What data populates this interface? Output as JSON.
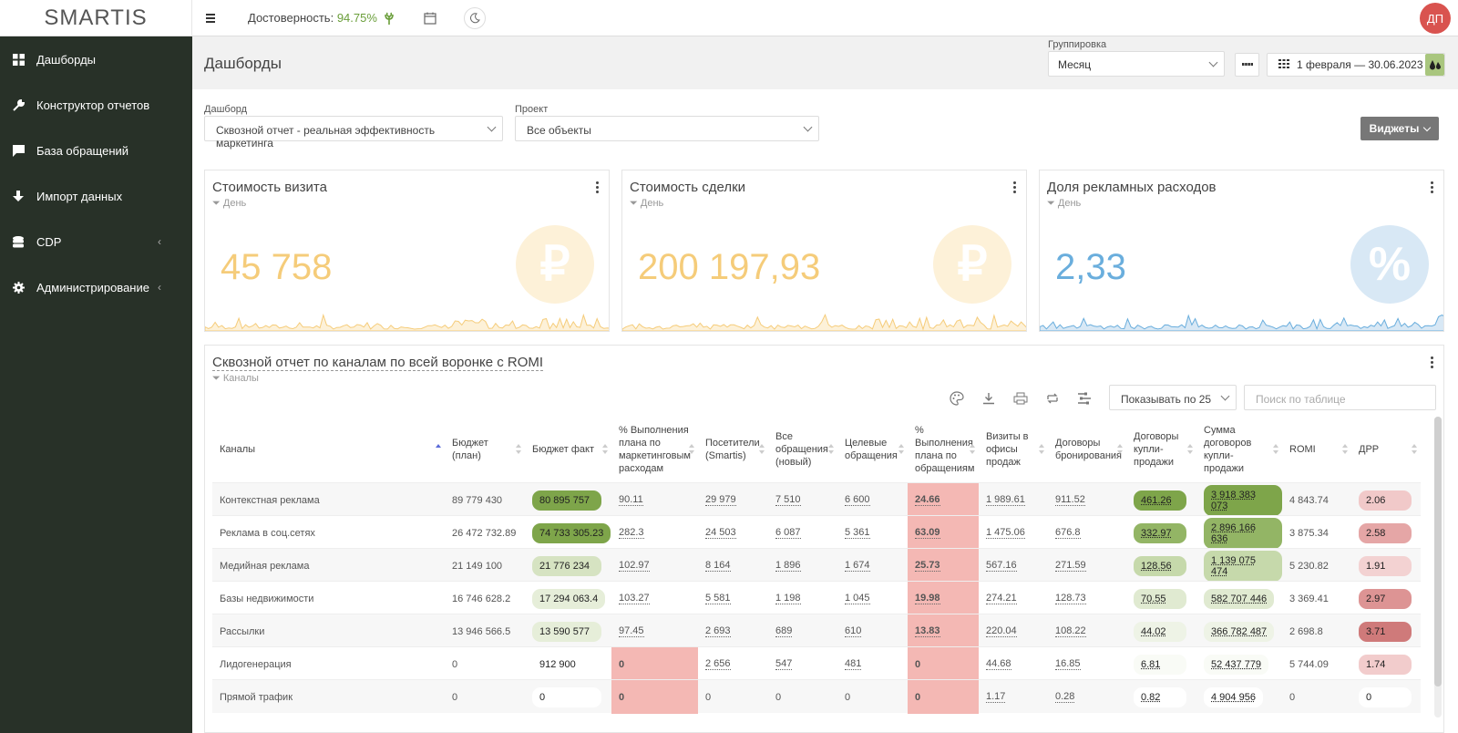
{
  "app": {
    "logo": "SMARTIS"
  },
  "topbar": {
    "reliability_label": "Достоверность:",
    "reliability_value": "94.75%",
    "avatar_initials": "ДП"
  },
  "sidebar": {
    "items": [
      {
        "label": "Дашборды",
        "icon": "grid-icon"
      },
      {
        "label": "Конструктор отчетов",
        "icon": "wrench-icon"
      },
      {
        "label": "База обращений",
        "icon": "chat-icon"
      },
      {
        "label": "Импорт данных",
        "icon": "download-icon"
      },
      {
        "label": "CDP",
        "icon": "database-icon",
        "has_children": true
      },
      {
        "label": "Администрирование",
        "icon": "gear-icon",
        "has_children": true
      }
    ]
  },
  "header": {
    "title": "Дашборды",
    "grouping_label": "Группировка",
    "grouping_value": "Месяц",
    "date_range": "1 февраля — 30.06.2023"
  },
  "filters": {
    "dashboard_label": "Дашборд",
    "dashboard_value": "Сквозной отчет - реальная эффективность маркетинга",
    "project_label": "Проект",
    "project_value": "Все объекты",
    "widgets_button": "Виджеты"
  },
  "cards": [
    {
      "title": "Стоимость визита",
      "sub": "День",
      "value": "45 758",
      "symbol": "₽",
      "color": "#f5cc7a",
      "circle": "#fdf1d8"
    },
    {
      "title": "Стоимость сделки",
      "sub": "День",
      "value": "200 197,93",
      "symbol": "₽",
      "color": "#f5cc7a",
      "circle": "#fdf1d8"
    },
    {
      "title": "Доля рекламных расходов",
      "sub": "День",
      "value": "2,33",
      "symbol": "%",
      "color": "#6aaedd",
      "circle": "#d8e8f5"
    }
  ],
  "table": {
    "title": "Сквозной отчет по каналам по всей воронке с ROMI",
    "sub": "Каналы",
    "per_page": "Показывать по 25",
    "search_placeholder": "Поиск по таблице",
    "columns": [
      "Каналы",
      "Бюджет (план)",
      "Бюджет факт",
      "% Выполнения плана по маркетинговым расходам",
      "Посетители (Smartis)",
      "Все обращения (новый)",
      "Целевые обращения",
      "% Выполнения плана по обращениям",
      "Визиты в офисы продаж",
      "Договоры бронирования",
      "Договоры купли-продажи",
      "Сумма договоров купли-продажи",
      "ROMI",
      "ДРР"
    ],
    "rows": [
      [
        "Контекстная реклама",
        "89 779 430",
        "80 895 757",
        "90.11",
        "29 979",
        "7 510",
        "6 600",
        "24.66",
        "1 989.61",
        "911.52",
        "461.26",
        "3 918 383 073",
        "4 843.74",
        "2.06"
      ],
      [
        "Реклама в соц.сетях",
        "26 472 732.89",
        "74 733 305.23",
        "282.3",
        "24 503",
        "6 087",
        "5 361",
        "63.09",
        "1 475.06",
        "676.8",
        "332.97",
        "2 896 166 636",
        "3 875.34",
        "2.58"
      ],
      [
        "Медийная реклама",
        "21 149 100",
        "21 776 234",
        "102.97",
        "8 164",
        "1 896",
        "1 674",
        "25.73",
        "567.16",
        "271.59",
        "128.56",
        "1 139 075 474",
        "5 230.82",
        "1.91"
      ],
      [
        "Базы недвижимости",
        "16 746 628.2",
        "17 294 063.4",
        "103.27",
        "5 581",
        "1 198",
        "1 045",
        "19.98",
        "274.21",
        "128.73",
        "70.55",
        "582 707 446",
        "3 369.41",
        "2.97"
      ],
      [
        "Рассылки",
        "13 946 566.5",
        "13 590 577",
        "97.45",
        "2 693",
        "689",
        "610",
        "13.83",
        "220.04",
        "108.22",
        "44.02",
        "366 782 487",
        "2 698.8",
        "3.71"
      ],
      [
        "Лидогенерация",
        "0",
        "912 900",
        "0",
        "2 656",
        "547",
        "481",
        "0",
        "44.68",
        "16.85",
        "6.81",
        "52 437 779",
        "5 744.09",
        "1.74"
      ],
      [
        "Прямой трафик",
        "0",
        "0",
        "0",
        "0",
        "0",
        "0",
        "0",
        "1.17",
        "0.28",
        "0.82",
        "4 904 956",
        "0",
        "0"
      ]
    ],
    "budget_fact_colors": [
      "#7ea54a",
      "#7ea54a",
      "#d6e3c2",
      "#e6eed9",
      "#e6eed9",
      "#ffffff",
      "#ffffff"
    ],
    "contracts_colors": [
      "#7ea54a",
      "#93b565",
      "#c6d9ab",
      "#e0ead1",
      "#eef3e6",
      "#f9fbf6",
      "#ffffff"
    ],
    "sum_colors": [
      "#7ea54a",
      "#93b565",
      "#c6d9ab",
      "#e0ead1",
      "#eef3e6",
      "#f9fbf6",
      "#ffffff"
    ],
    "drr_colors": [
      "#f1c9c9",
      "#e5a6a6",
      "#f3d2d2",
      "#dd9494",
      "#cf7a7a",
      "#f2cccc",
      "#ffffff"
    ]
  }
}
